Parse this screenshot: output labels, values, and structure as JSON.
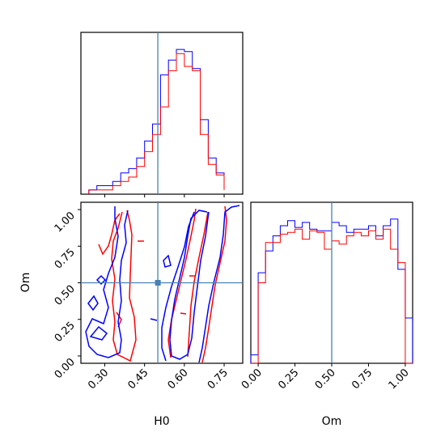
{
  "chart_data": {
    "type": "corner",
    "parameters": [
      "H0",
      "Om"
    ],
    "truth": {
      "H0": 0.5,
      "Om": 0.5
    },
    "colors": {
      "blue": "#0000ff",
      "red": "#ff0000",
      "truth": "#4682b4"
    },
    "panels": {
      "H0_hist": {
        "xlim": [
          0.21,
          0.82
        ],
        "bins": [
          0.24,
          0.27,
          0.3,
          0.33,
          0.36,
          0.39,
          0.42,
          0.45,
          0.48,
          0.51,
          0.54,
          0.57,
          0.6,
          0.63,
          0.66,
          0.69,
          0.72,
          0.75
        ],
        "series": [
          {
            "color": "blue",
            "values": [
              0.02,
              0.04,
              0.04,
              0.06,
              0.1,
              0.12,
              0.17,
              0.25,
              0.33,
              0.56,
              0.63,
              0.68,
              0.67,
              0.59,
              0.35,
              0.17,
              0.1,
              0.02
            ]
          },
          {
            "color": "red",
            "values": [
              0.02,
              0.02,
              0.02,
              0.04,
              0.06,
              0.08,
              0.13,
              0.2,
              0.28,
              0.41,
              0.58,
              0.66,
              0.6,
              0.58,
              0.28,
              0.14,
              0.09,
              0.02
            ]
          }
        ]
      },
      "H0_Om": {
        "xlim": [
          0.21,
          0.82
        ],
        "ylim": [
          -0.05,
          1.05
        ],
        "xticks": [
          "0.30",
          "0.45",
          "0.60",
          "0.75"
        ],
        "yticks": [
          "0.00",
          "0.25",
          "0.50",
          "0.75",
          "1.00"
        ],
        "xlabel": "H0",
        "ylabel": "Om"
      },
      "Om_hist": {
        "xlim": [
          -0.05,
          1.05
        ],
        "xticks": [
          "0.00",
          "0.25",
          "0.50",
          "0.75",
          "1.00"
        ],
        "xlabel": "Om",
        "bins": [
          -0.05,
          0.0,
          0.05,
          0.1,
          0.15,
          0.2,
          0.25,
          0.3,
          0.35,
          0.4,
          0.45,
          0.5,
          0.55,
          0.6,
          0.65,
          0.7,
          0.75,
          0.8,
          0.85,
          0.9,
          0.95,
          1.0,
          1.05
        ],
        "series": [
          {
            "color": "blue",
            "values": [
              0.05,
              0.54,
              0.67,
              0.76,
              0.82,
              0.85,
              0.81,
              0.84,
              0.8,
              0.79,
              0.79,
              0.84,
              0.82,
              0.78,
              0.8,
              0.8,
              0.82,
              0.76,
              0.82,
              0.86,
              0.56,
              0.27
            ]
          },
          {
            "color": "red",
            "values": [
              0.0,
              0.48,
              0.72,
              0.72,
              0.77,
              0.78,
              0.8,
              0.74,
              0.79,
              0.78,
              0.68,
              0.73,
              0.71,
              0.76,
              0.78,
              0.76,
              0.79,
              0.74,
              0.8,
              0.68,
              0.6,
              0.0
            ]
          }
        ]
      }
    }
  }
}
